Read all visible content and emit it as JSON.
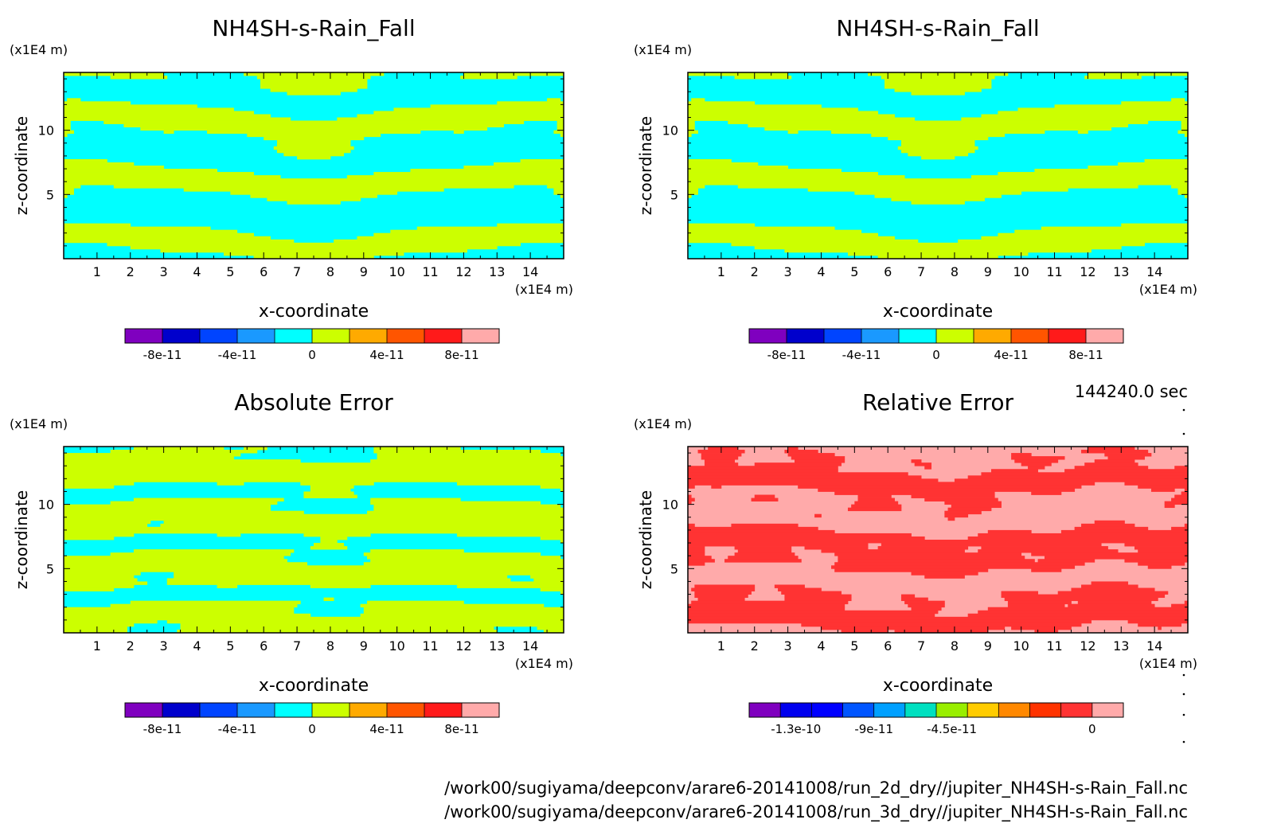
{
  "figure": {
    "timestamp": "144240.0 sec",
    "footer_lines": [
      "/work00/sugiyama/deepconv/arare6-20141008/run_2d_dry//jupiter_NH4SH-s-Rain_Fall.nc",
      "/work00/sugiyama/deepconv/arare6-20141008/run_3d_dry//jupiter_NH4SH-s-Rain_Fall.nc"
    ]
  },
  "colors": {
    "pattern_fg": "#ccff00",
    "pattern_bg": "#00ffff",
    "rel_fg": "#ff3333",
    "rel_bg": "#ffaaaa"
  },
  "chart_data": [
    {
      "type": "heatmap",
      "title": "NH4SH-s-Rain_Fall",
      "xlabel": "x-coordinate",
      "ylabel": "z-coordinate",
      "x_unit": "(x1E4 m)",
      "y_unit": "(x1E4 m)",
      "xlim": [
        0,
        15
      ],
      "ylim": [
        0,
        14.5
      ],
      "x_ticks": [
        "1",
        "2",
        "3",
        "4",
        "5",
        "6",
        "7",
        "8",
        "9",
        "10",
        "11",
        "12",
        "13",
        "14"
      ],
      "y_ticks": [
        "5",
        "10"
      ],
      "colorbar": {
        "colors": [
          "#7f00bf",
          "#0000cc",
          "#0044ff",
          "#1a99ff",
          "#00ffff",
          "#ccff00",
          "#ffaa00",
          "#ff5500",
          "#ff1a1a",
          "#ffaaaa"
        ],
        "labels": [
          "-8e-11",
          "-4e-11",
          "0",
          "4e-11",
          "8e-11"
        ]
      },
      "pattern": "field"
    },
    {
      "type": "heatmap",
      "title": "NH4SH-s-Rain_Fall",
      "xlabel": "x-coordinate",
      "ylabel": "z-coordinate",
      "x_unit": "(x1E4 m)",
      "y_unit": "(x1E4 m)",
      "xlim": [
        0,
        15
      ],
      "ylim": [
        0,
        14.5
      ],
      "x_ticks": [
        "1",
        "2",
        "3",
        "4",
        "5",
        "6",
        "7",
        "8",
        "9",
        "10",
        "11",
        "12",
        "13",
        "14"
      ],
      "y_ticks": [
        "5",
        "10"
      ],
      "colorbar": {
        "colors": [
          "#7f00bf",
          "#0000cc",
          "#0044ff",
          "#1a99ff",
          "#00ffff",
          "#ccff00",
          "#ffaa00",
          "#ff5500",
          "#ff1a1a",
          "#ffaaaa"
        ],
        "labels": [
          "-8e-11",
          "-4e-11",
          "0",
          "4e-11",
          "8e-11"
        ]
      },
      "pattern": "field"
    },
    {
      "type": "heatmap",
      "title": "Absolute Error",
      "xlabel": "x-coordinate",
      "ylabel": "z-coordinate",
      "x_unit": "(x1E4 m)",
      "y_unit": "(x1E4 m)",
      "xlim": [
        0,
        15
      ],
      "ylim": [
        0,
        14.5
      ],
      "x_ticks": [
        "1",
        "2",
        "3",
        "4",
        "5",
        "6",
        "7",
        "8",
        "9",
        "10",
        "11",
        "12",
        "13",
        "14"
      ],
      "y_ticks": [
        "5",
        "10"
      ],
      "colorbar": {
        "colors": [
          "#7f00bf",
          "#0000cc",
          "#0044ff",
          "#1a99ff",
          "#00ffff",
          "#ccff00",
          "#ffaa00",
          "#ff5500",
          "#ff1a1a",
          "#ffaaaa"
        ],
        "labels": [
          "-8e-11",
          "-4e-11",
          "0",
          "4e-11",
          "8e-11"
        ]
      },
      "pattern": "abs"
    },
    {
      "type": "heatmap",
      "title": "Relative Error",
      "xlabel": "x-coordinate",
      "ylabel": "z-coordinate",
      "x_unit": "(x1E4 m)",
      "y_unit": "(x1E4 m)",
      "xlim": [
        0,
        15
      ],
      "ylim": [
        0,
        14.5
      ],
      "x_ticks": [
        "1",
        "2",
        "3",
        "4",
        "5",
        "6",
        "7",
        "8",
        "9",
        "10",
        "11",
        "12",
        "13",
        "14"
      ],
      "y_ticks": [
        "5",
        "10"
      ],
      "colorbar": {
        "colors": [
          "#7f00bf",
          "#0000ee",
          "#0000ff",
          "#0055ff",
          "#00a0ff",
          "#00e0c0",
          "#99ee00",
          "#ffcc00",
          "#ff8800",
          "#ff3300",
          "#ff3333",
          "#ffaaaa"
        ],
        "labels": [
          "-1.3e-10",
          "-9e-11",
          "-4.5e-11",
          "0"
        ]
      },
      "pattern": "rel"
    }
  ]
}
